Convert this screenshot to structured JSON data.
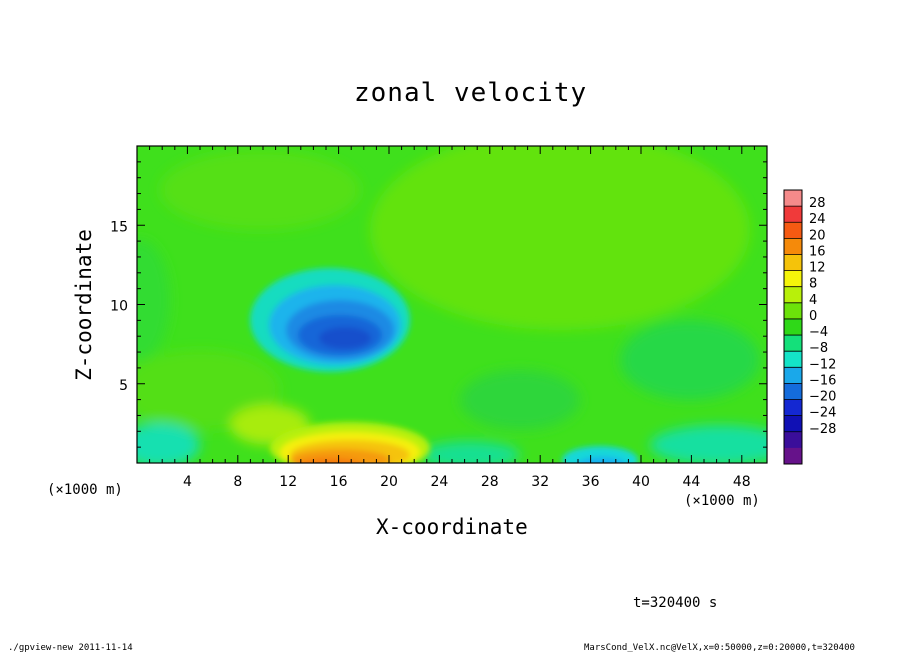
{
  "chart_data": {
    "type": "heatmap",
    "title": "zonal velocity",
    "xlabel": "X-coordinate",
    "ylabel": "Z-coordinate",
    "x_unit": "(×1000 m)",
    "y_unit": "(×1000 m)",
    "xlim": [
      0,
      50
    ],
    "ylim": [
      0,
      20
    ],
    "x_ticks": [
      4,
      8,
      12,
      16,
      20,
      24,
      28,
      32,
      36,
      40,
      44,
      48
    ],
    "y_ticks": [
      5,
      10,
      15
    ],
    "colorbar": {
      "labels": [
        "28",
        "24",
        "20",
        "16",
        "12",
        "8",
        "4",
        "0",
        "−4",
        "−8",
        "−12",
        "−16",
        "−20",
        "−24",
        "−28"
      ],
      "colors": [
        "#f58a8a",
        "#f03a3a",
        "#f55a12",
        "#f58a0a",
        "#f5c30a",
        "#f5f50a",
        "#b8f00a",
        "#6ce20a",
        "#2fd818",
        "#14e07a",
        "#14e4c8",
        "#1aa8ea",
        "#146cdc",
        "#1428d2",
        "#1010b4",
        "#3a0e9a",
        "#66128a"
      ]
    },
    "features": [
      {
        "name": "negative core",
        "x": 17,
        "z": 8,
        "value": -16
      },
      {
        "name": "positive near surface",
        "x": 17,
        "z": 1,
        "value": 16
      },
      {
        "name": "negative near surface",
        "x": 37,
        "z": 0.5,
        "value": -12
      }
    ],
    "background_value": 0
  },
  "annotations": {
    "time": "t=320400 s",
    "footer_left": "./gpview-new  2011-11-14",
    "footer_right": "MarsCond_VelX.nc@VelX,x=0:50000,z=0:20000,t=320400"
  }
}
